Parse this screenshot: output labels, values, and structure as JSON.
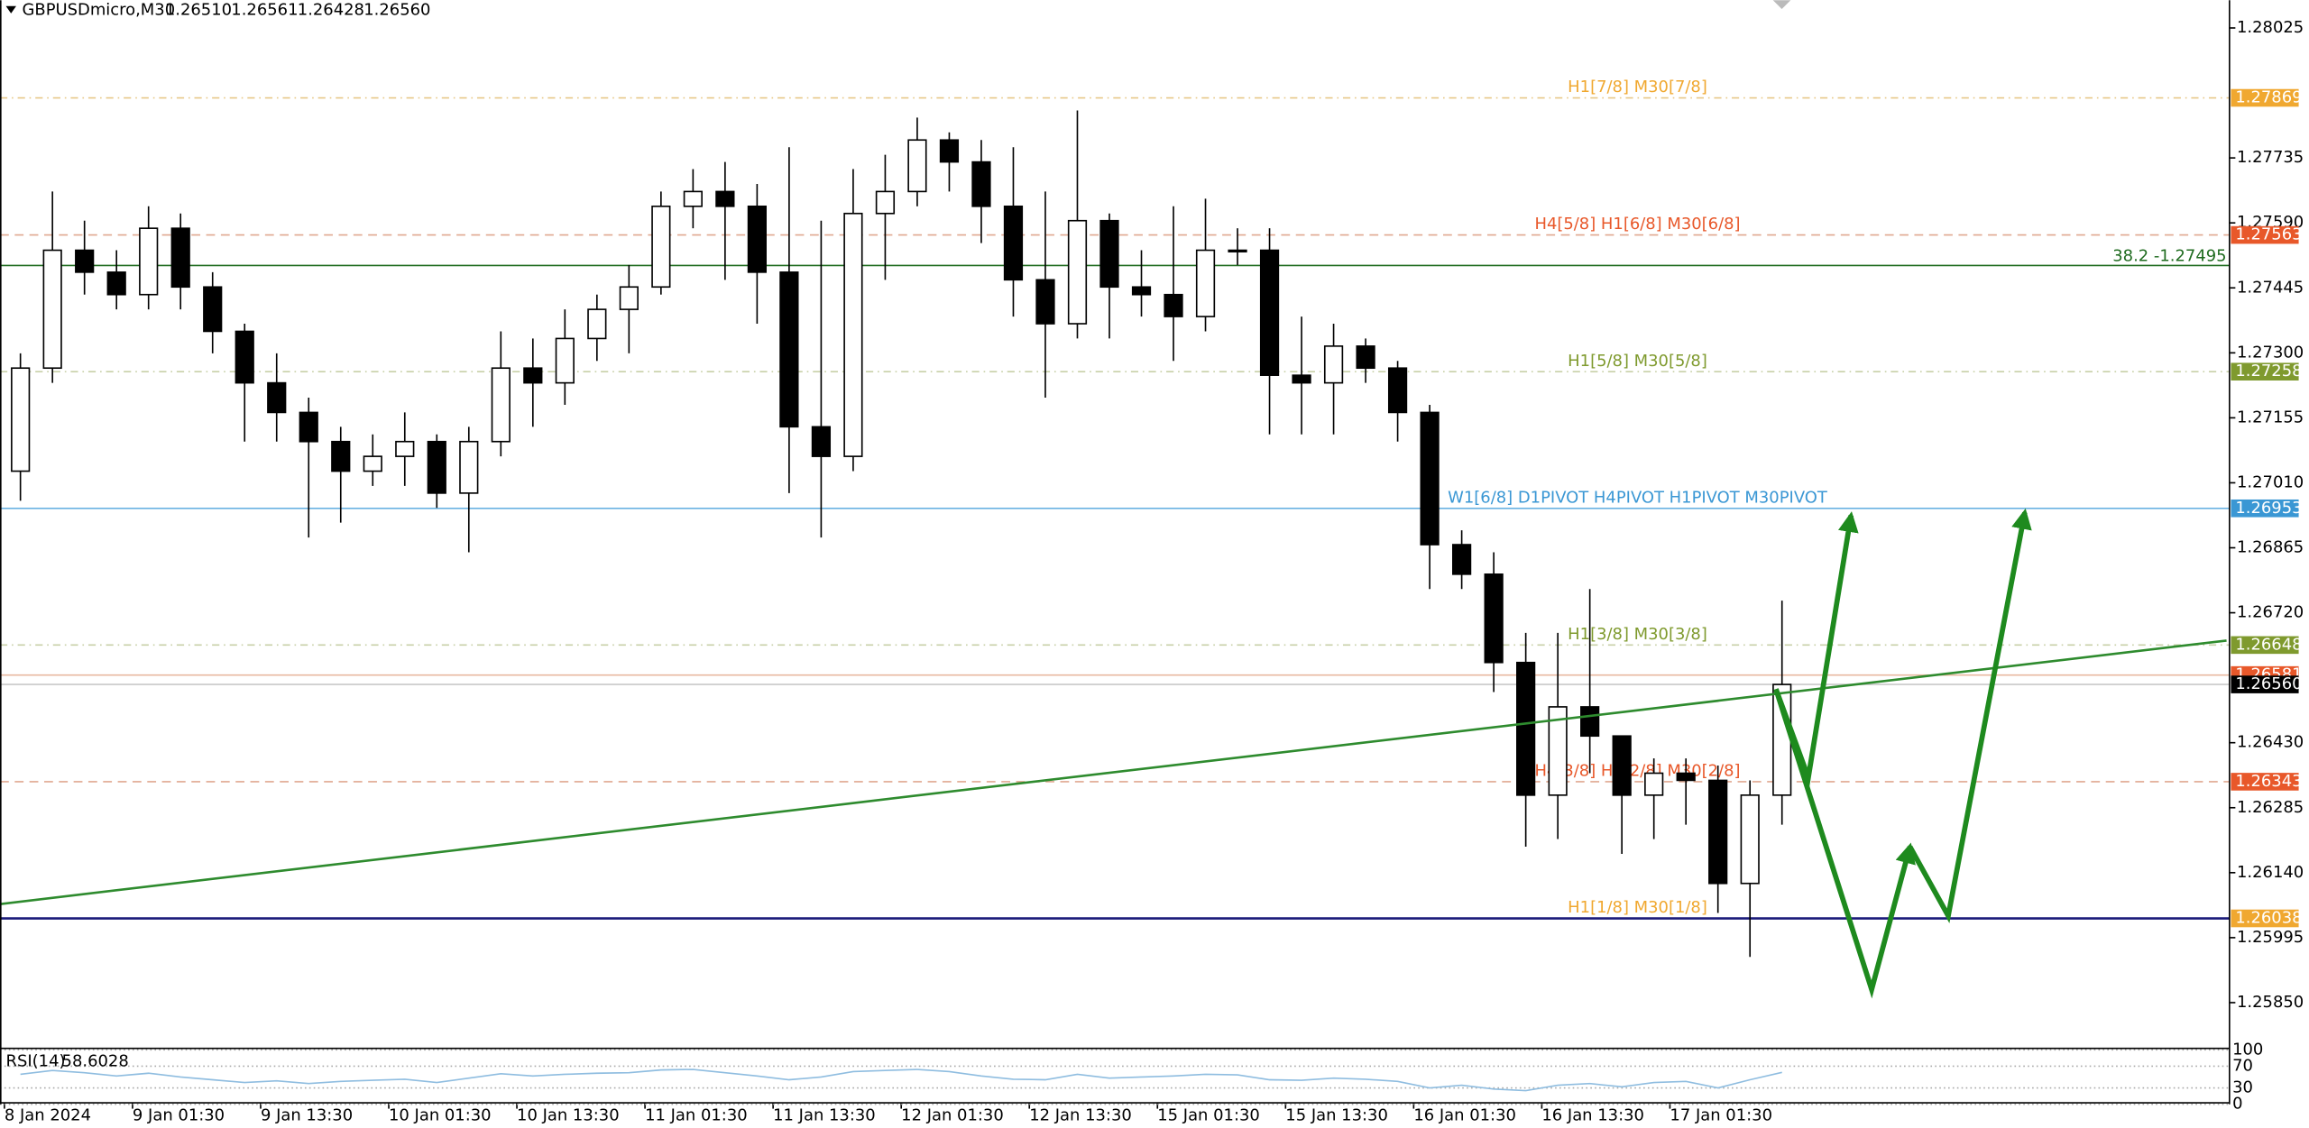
{
  "header": {
    "symbol": "GBPUSDmicro,M30",
    "ohlc": [
      "1.26510",
      "1.26561",
      "1.26428",
      "1.26560"
    ]
  },
  "chart_data": [
    {
      "type": "candlestick",
      "categories": [
        "8 Jan 2024",
        null,
        null,
        null,
        "9 Jan 01:30",
        null,
        null,
        null,
        "9 Jan 13:30",
        null,
        null,
        null,
        "10 Jan 01:30",
        null,
        null,
        null,
        "10 Jan 13:30",
        null,
        null,
        null,
        "11 Jan 01:30",
        null,
        null,
        null,
        "11 Jan 13:30",
        null,
        null,
        null,
        "12 Jan 01:30",
        null,
        null,
        null,
        "12 Jan 13:30",
        null,
        null,
        null,
        "15 Jan 01:30",
        null,
        null,
        null,
        "15 Jan 13:30",
        null,
        null,
        null,
        "16 Jan 01:30",
        null,
        null,
        null,
        "16 Jan 13:30",
        null,
        null,
        null,
        "17 Jan 01:30",
        null,
        null,
        null
      ],
      "open": [
        1.27036,
        1.27266,
        1.27529,
        1.2748,
        1.2743,
        1.27578,
        1.27447,
        1.27348,
        1.27233,
        1.27167,
        1.27102,
        1.27036,
        1.27069,
        1.27102,
        1.26987,
        1.27102,
        1.27266,
        1.27233,
        1.27332,
        1.27397,
        1.27447,
        1.27627,
        1.2766,
        1.27627,
        1.2748,
        1.27135,
        1.27069,
        1.27611,
        1.2766,
        1.27775,
        1.27726,
        1.27627,
        1.27463,
        1.27365,
        1.27595,
        1.27447,
        1.2743,
        1.27381,
        1.27529,
        1.27529,
        1.2725,
        1.27233,
        1.27315,
        1.27266,
        1.27167,
        1.26872,
        1.26806,
        1.26609,
        1.26313,
        1.2651,
        1.26445,
        1.26313,
        1.26362,
        1.26346,
        1.26116,
        1.26313
      ],
      "high": [
        1.27299,
        1.2766,
        1.27595,
        1.27529,
        1.27627,
        1.27611,
        1.2748,
        1.27365,
        1.27299,
        1.272,
        1.27135,
        1.27118,
        1.27167,
        1.27118,
        1.27135,
        1.27348,
        1.27332,
        1.27397,
        1.2743,
        1.27496,
        1.2766,
        1.2771,
        1.27726,
        1.27677,
        1.27759,
        1.27595,
        1.2771,
        1.27742,
        1.27825,
        1.27792,
        1.27775,
        1.27759,
        1.2766,
        1.27841,
        1.27611,
        1.27529,
        1.27627,
        1.27644,
        1.27578,
        1.27578,
        1.27381,
        1.27365,
        1.27332,
        1.27282,
        1.27184,
        1.26904,
        1.26855,
        1.26675,
        1.26675,
        1.26773,
        1.26445,
        1.26395,
        1.26395,
        1.26379,
        1.26346,
        1.26747
      ],
      "low": [
        1.2697,
        1.27233,
        1.2743,
        1.27397,
        1.27397,
        1.27397,
        1.27299,
        1.27102,
        1.27102,
        1.26888,
        1.26921,
        1.27003,
        1.27003,
        1.26954,
        1.26855,
        1.27069,
        1.27135,
        1.27184,
        1.27282,
        1.27299,
        1.2743,
        1.27578,
        1.27463,
        1.27365,
        1.26987,
        1.26888,
        1.27036,
        1.27463,
        1.27627,
        1.2766,
        1.27545,
        1.27381,
        1.272,
        1.27332,
        1.27332,
        1.27381,
        1.27282,
        1.27348,
        1.27496,
        1.27118,
        1.27118,
        1.27118,
        1.27233,
        1.27102,
        1.26773,
        1.26773,
        1.26543,
        1.26198,
        1.26215,
        1.26362,
        1.26182,
        1.26215,
        1.26247,
        1.2605,
        1.25952,
        1.26247
      ],
      "close": [
        1.27266,
        1.27529,
        1.2748,
        1.2743,
        1.27578,
        1.27447,
        1.27348,
        1.27233,
        1.27167,
        1.27102,
        1.27036,
        1.27069,
        1.27102,
        1.26987,
        1.27102,
        1.27266,
        1.27233,
        1.27332,
        1.27397,
        1.27447,
        1.27627,
        1.2766,
        1.27627,
        1.2748,
        1.27135,
        1.27069,
        1.27611,
        1.2766,
        1.27775,
        1.27726,
        1.27627,
        1.27463,
        1.27365,
        1.27595,
        1.27447,
        1.2743,
        1.27381,
        1.27529,
        1.27529,
        1.2725,
        1.27233,
        1.27315,
        1.27266,
        1.27167,
        1.26872,
        1.26806,
        1.26609,
        1.26313,
        1.2651,
        1.26445,
        1.26313,
        1.26362,
        1.26346,
        1.26116,
        1.26313,
        1.2656
      ],
      "up_color": "#ffffff",
      "down_color": "#000000",
      "wick_color": "#000000",
      "ylim": [
        1.25748,
        1.28087
      ],
      "yticks": [
        1.28025,
        1.27735,
        {
          "value": 1.2759,
          "label": "1.27590"
        },
        1.27445,
        {
          "value": 1.273,
          "label": "1.27300"
        },
        1.27155,
        {
          "value": 1.2701,
          "label": "1.27010"
        },
        1.26865,
        {
          "value": 1.2672,
          "label": "1.26720"
        },
        {
          "value": 1.2643,
          "label": "1.26430"
        },
        1.26285,
        {
          "value": 1.2614,
          "label": "1.26140"
        },
        1.25995,
        {
          "value": 1.2585,
          "label": "1.25850"
        }
      ],
      "levels": [
        {
          "value": 1.27869,
          "text": "H1[7/8] M30[7/8]",
          "color": "#f0a830",
          "line_color": "#e8c98a",
          "dash": "5 3 1 3",
          "box": true
        },
        {
          "value": 1.27563,
          "text": "H4[5/8] H1[6/8] M30[6/8]",
          "color": "#e8582a",
          "line_color": "#e0a890",
          "dash": "6 4",
          "box": true
        },
        {
          "value": 1.27495,
          "text": "38.2 -1.27495",
          "color": "#1f6b1f",
          "line_color": "#1f6b1f",
          "dash": "none",
          "box": false
        },
        {
          "value": 1.27258,
          "text": "H1[5/8] M30[5/8]",
          "color": "#7f9a2e",
          "line_color": "#c8d0a8",
          "dash": "5 3 1 3",
          "box": true
        },
        {
          "value": 1.26953,
          "text": "W1[6/8] D1PIVOT H4PIVOT H1PIVOT M30PIVOT",
          "color": "#3a97d4",
          "line_color": "#6ab2e2",
          "dash": "none",
          "box": true
        },
        {
          "value": 1.26648,
          "text": "H1[3/8] M30[3/8]",
          "color": "#7f9a2e",
          "line_color": "#c8d0a8",
          "dash": "5 3 1 3",
          "box": true
        },
        {
          "value": 1.26581,
          "color": "#e8582a",
          "line_color": "#e8b8a0",
          "dash": "none",
          "box": true
        },
        {
          "value": 1.26343,
          "text": "H4[3/8] H1[2/8] M30[2/8]",
          "color": "#e8582a",
          "line_color": "#e0a890",
          "dash": "6 4",
          "box": true
        },
        {
          "value": 1.26038,
          "text": "H1[1/8] M30[1/8]",
          "color": "#f0a830",
          "line_color": "#1a1a7a",
          "dash": "none",
          "box": true
        }
      ],
      "last_price": {
        "value": 1.2656,
        "label": "1.26560",
        "color": "#000000"
      }
    },
    {
      "type": "line",
      "name": "RSI(14)",
      "color": "#8fbde0",
      "values": [
        55,
        62,
        58,
        52,
        57,
        50,
        45,
        40,
        43,
        38,
        42,
        44,
        46,
        40,
        48,
        56,
        52,
        55,
        57,
        58,
        63,
        64,
        58,
        52,
        45,
        50,
        60,
        62,
        64,
        60,
        52,
        46,
        45,
        55,
        48,
        50,
        52,
        55,
        54,
        45,
        44,
        48,
        46,
        42,
        30,
        35,
        28,
        25,
        35,
        38,
        32,
        40,
        42,
        30,
        45,
        58.6028
      ],
      "ylim": [
        0,
        100
      ],
      "yticks": [
        0,
        30,
        70,
        100
      ]
    }
  ]
}
